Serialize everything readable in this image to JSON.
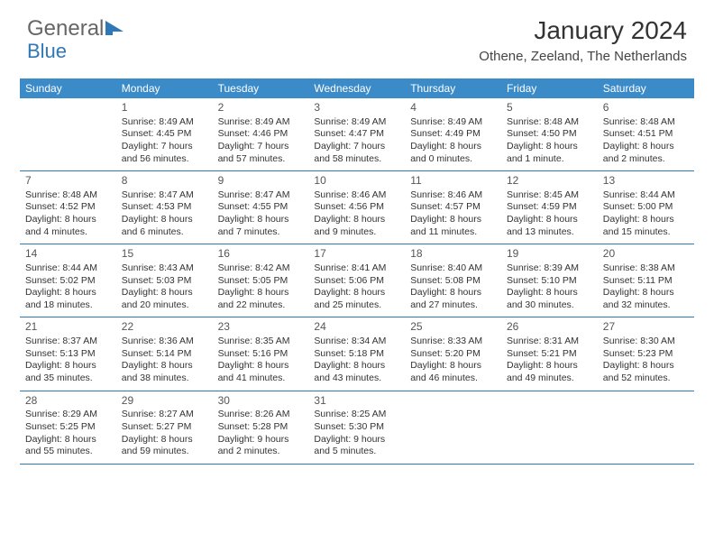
{
  "logo": {
    "part1": "General",
    "part2": "Blue"
  },
  "title": "January 2024",
  "location": "Othene, Zeeland, The Netherlands",
  "colors": {
    "header_bg": "#3b8bc9",
    "border": "#2f78b7",
    "text": "#333333",
    "bg": "#ffffff"
  },
  "daysOfWeek": [
    "Sunday",
    "Monday",
    "Tuesday",
    "Wednesday",
    "Thursday",
    "Friday",
    "Saturday"
  ],
  "startOffset": 1,
  "days": [
    {
      "n": 1,
      "sr": "8:49 AM",
      "ss": "4:45 PM",
      "dl": "7 hours and 56 minutes."
    },
    {
      "n": 2,
      "sr": "8:49 AM",
      "ss": "4:46 PM",
      "dl": "7 hours and 57 minutes."
    },
    {
      "n": 3,
      "sr": "8:49 AM",
      "ss": "4:47 PM",
      "dl": "7 hours and 58 minutes."
    },
    {
      "n": 4,
      "sr": "8:49 AM",
      "ss": "4:49 PM",
      "dl": "8 hours and 0 minutes."
    },
    {
      "n": 5,
      "sr": "8:48 AM",
      "ss": "4:50 PM",
      "dl": "8 hours and 1 minute."
    },
    {
      "n": 6,
      "sr": "8:48 AM",
      "ss": "4:51 PM",
      "dl": "8 hours and 2 minutes."
    },
    {
      "n": 7,
      "sr": "8:48 AM",
      "ss": "4:52 PM",
      "dl": "8 hours and 4 minutes."
    },
    {
      "n": 8,
      "sr": "8:47 AM",
      "ss": "4:53 PM",
      "dl": "8 hours and 6 minutes."
    },
    {
      "n": 9,
      "sr": "8:47 AM",
      "ss": "4:55 PM",
      "dl": "8 hours and 7 minutes."
    },
    {
      "n": 10,
      "sr": "8:46 AM",
      "ss": "4:56 PM",
      "dl": "8 hours and 9 minutes."
    },
    {
      "n": 11,
      "sr": "8:46 AM",
      "ss": "4:57 PM",
      "dl": "8 hours and 11 minutes."
    },
    {
      "n": 12,
      "sr": "8:45 AM",
      "ss": "4:59 PM",
      "dl": "8 hours and 13 minutes."
    },
    {
      "n": 13,
      "sr": "8:44 AM",
      "ss": "5:00 PM",
      "dl": "8 hours and 15 minutes."
    },
    {
      "n": 14,
      "sr": "8:44 AM",
      "ss": "5:02 PM",
      "dl": "8 hours and 18 minutes."
    },
    {
      "n": 15,
      "sr": "8:43 AM",
      "ss": "5:03 PM",
      "dl": "8 hours and 20 minutes."
    },
    {
      "n": 16,
      "sr": "8:42 AM",
      "ss": "5:05 PM",
      "dl": "8 hours and 22 minutes."
    },
    {
      "n": 17,
      "sr": "8:41 AM",
      "ss": "5:06 PM",
      "dl": "8 hours and 25 minutes."
    },
    {
      "n": 18,
      "sr": "8:40 AM",
      "ss": "5:08 PM",
      "dl": "8 hours and 27 minutes."
    },
    {
      "n": 19,
      "sr": "8:39 AM",
      "ss": "5:10 PM",
      "dl": "8 hours and 30 minutes."
    },
    {
      "n": 20,
      "sr": "8:38 AM",
      "ss": "5:11 PM",
      "dl": "8 hours and 32 minutes."
    },
    {
      "n": 21,
      "sr": "8:37 AM",
      "ss": "5:13 PM",
      "dl": "8 hours and 35 minutes."
    },
    {
      "n": 22,
      "sr": "8:36 AM",
      "ss": "5:14 PM",
      "dl": "8 hours and 38 minutes."
    },
    {
      "n": 23,
      "sr": "8:35 AM",
      "ss": "5:16 PM",
      "dl": "8 hours and 41 minutes."
    },
    {
      "n": 24,
      "sr": "8:34 AM",
      "ss": "5:18 PM",
      "dl": "8 hours and 43 minutes."
    },
    {
      "n": 25,
      "sr": "8:33 AM",
      "ss": "5:20 PM",
      "dl": "8 hours and 46 minutes."
    },
    {
      "n": 26,
      "sr": "8:31 AM",
      "ss": "5:21 PM",
      "dl": "8 hours and 49 minutes."
    },
    {
      "n": 27,
      "sr": "8:30 AM",
      "ss": "5:23 PM",
      "dl": "8 hours and 52 minutes."
    },
    {
      "n": 28,
      "sr": "8:29 AM",
      "ss": "5:25 PM",
      "dl": "8 hours and 55 minutes."
    },
    {
      "n": 29,
      "sr": "8:27 AM",
      "ss": "5:27 PM",
      "dl": "8 hours and 59 minutes."
    },
    {
      "n": 30,
      "sr": "8:26 AM",
      "ss": "5:28 PM",
      "dl": "9 hours and 2 minutes."
    },
    {
      "n": 31,
      "sr": "8:25 AM",
      "ss": "5:30 PM",
      "dl": "9 hours and 5 minutes."
    }
  ],
  "labels": {
    "sunrise": "Sunrise:",
    "sunset": "Sunset:",
    "daylight": "Daylight:"
  }
}
